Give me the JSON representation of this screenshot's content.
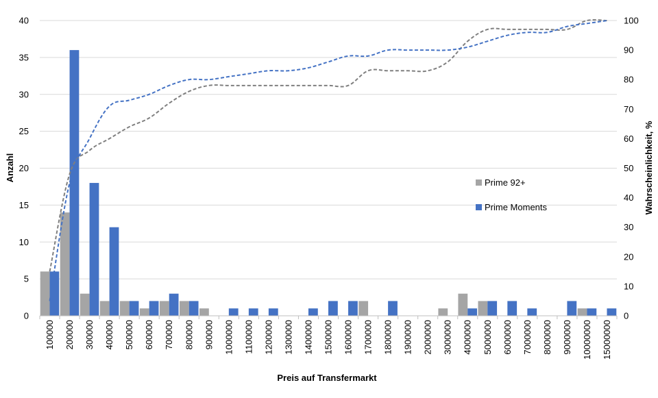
{
  "chart_data": {
    "type": "bar",
    "xlabel": "Preis auf Transfermarkt",
    "ylabel": "Anzahl",
    "y2label": "Wahrscheinlichkeit, %",
    "ylim": [
      0,
      40
    ],
    "y2lim": [
      0,
      100
    ],
    "yticks": [
      "0",
      "5",
      "10",
      "15",
      "20",
      "25",
      "30",
      "35",
      "40"
    ],
    "y2ticks": [
      "0",
      "10",
      "20",
      "30",
      "40",
      "50",
      "60",
      "70",
      "80",
      "90",
      "100"
    ],
    "grid": true,
    "legend_position": "right",
    "categories": [
      "100000",
      "200000",
      "300000",
      "400000",
      "500000",
      "600000",
      "700000",
      "800000",
      "900000",
      "1000000",
      "1100000",
      "1200000",
      "1300000",
      "1400000",
      "1500000",
      "1600000",
      "1700000",
      "1800000",
      "1900000",
      "2000000",
      "3000000",
      "4000000",
      "5000000",
      "6000000",
      "7000000",
      "8000000",
      "9000000",
      "10000000",
      "15000000"
    ],
    "series": [
      {
        "name": "Prime 92+",
        "kind": "bar",
        "color": "#a5a5a5",
        "values": [
          6,
          14,
          3,
          2,
          2,
          1,
          2,
          2,
          1,
          0,
          0,
          0,
          0,
          0,
          0,
          0,
          2,
          0,
          0,
          0,
          1,
          3,
          2,
          0,
          0,
          0,
          0,
          1,
          0
        ]
      },
      {
        "name": "Prime Moments",
        "kind": "bar",
        "color": "#4472c4",
        "values": [
          6,
          36,
          18,
          12,
          2,
          2,
          3,
          2,
          0,
          1,
          1,
          1,
          0,
          1,
          2,
          2,
          0,
          2,
          0,
          0,
          0,
          1,
          2,
          2,
          1,
          0,
          2,
          1,
          1
        ]
      },
      {
        "kind": "cumulative-line",
        "axis": "right",
        "color": "#7f7f7f",
        "values": [
          15,
          48,
          56,
          60,
          64,
          67,
          72,
          76,
          78,
          78,
          78,
          78,
          78,
          78,
          78,
          78,
          83,
          83,
          83,
          83,
          86,
          93,
          97,
          97,
          97,
          97,
          97,
          100,
          100
        ]
      },
      {
        "kind": "cumulative-line",
        "axis": "right",
        "color": "#4472c4",
        "values": [
          5,
          45,
          60,
          71,
          73,
          75,
          78,
          80,
          80,
          81,
          82,
          83,
          83,
          84,
          86,
          88,
          88,
          90,
          90,
          90,
          90,
          91,
          93,
          95,
          96,
          96,
          98,
          99,
          100
        ]
      }
    ]
  }
}
